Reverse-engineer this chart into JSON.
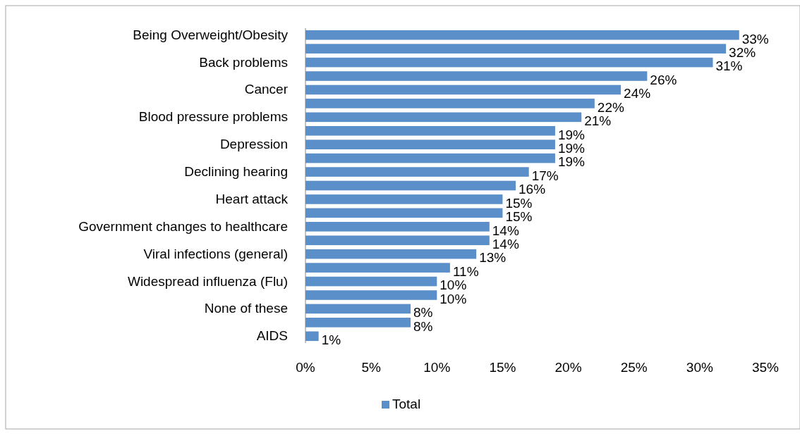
{
  "chart_data": {
    "type": "bar",
    "orientation": "horizontal",
    "categories": [
      "Being Overweight/Obesity",
      null,
      "Back problems",
      null,
      "Cancer",
      null,
      "Blood pressure problems",
      null,
      "Depression",
      null,
      "Declining hearing",
      null,
      "Heart attack",
      null,
      "Government changes to healthcare",
      null,
      "Viral infections (general)",
      null,
      "Widespread influenza (Flu)",
      null,
      "None of these",
      null,
      "AIDS"
    ],
    "series": [
      {
        "name": "Total",
        "color": "#5b8fc9",
        "values": [
          33,
          32,
          31,
          26,
          24,
          22,
          21,
          19,
          19,
          19,
          17,
          16,
          15,
          15,
          14,
          14,
          13,
          11,
          10,
          10,
          8,
          8,
          1
        ],
        "value_labels": [
          "33%",
          "32%",
          "31%",
          "26%",
          "24%",
          "22%",
          "21%",
          "19%",
          "19%",
          "19%",
          "17%",
          "16%",
          "15%",
          "15%",
          "14%",
          "14%",
          "13%",
          "11%",
          "10%",
          "10%",
          "8%",
          "8%",
          "1%"
        ]
      }
    ],
    "xlim": [
      0,
      35
    ],
    "xticks": [
      {
        "value": 0,
        "label": "0%"
      },
      {
        "value": 5,
        "label": "5%"
      },
      {
        "value": 10,
        "label": "10%"
      },
      {
        "value": 15,
        "label": "15%"
      },
      {
        "value": 20,
        "label": "20%"
      },
      {
        "value": 25,
        "label": "25%"
      },
      {
        "value": 30,
        "label": "30%"
      },
      {
        "value": 35,
        "label": "35%"
      }
    ],
    "grid": false,
    "legend": "bottom"
  }
}
